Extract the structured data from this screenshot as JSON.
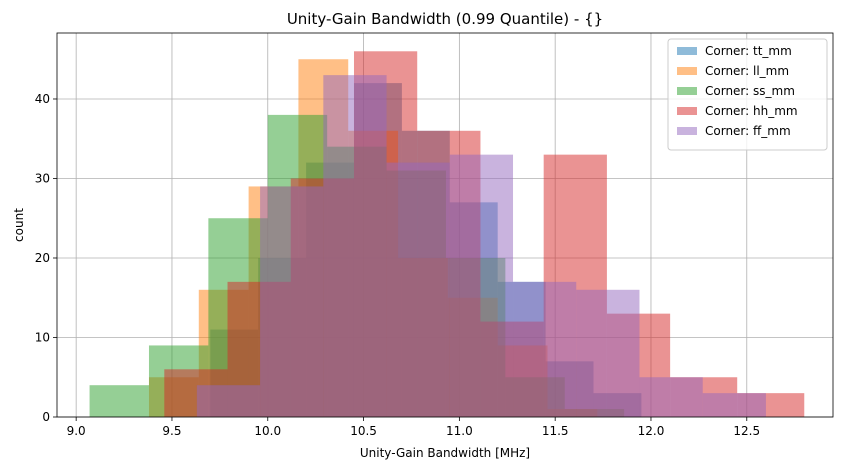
{
  "chart_data": {
    "type": "histogram",
    "title": "Unity-Gain Bandwidth (0.99 Quantile) - {}",
    "xlabel": "Unity-Gain Bandwidth [MHz]",
    "ylabel": "count",
    "xlim": [
      8.9,
      12.95
    ],
    "ylim": [
      0,
      48.3
    ],
    "xticks": [
      9.0,
      9.5,
      10.0,
      10.5,
      11.0,
      11.5,
      12.0,
      12.5
    ],
    "xtick_labels": [
      "9.0",
      "9.5",
      "10.0",
      "10.5",
      "11.0",
      "11.5",
      "12.0",
      "12.5"
    ],
    "yticks": [
      0,
      10,
      20,
      30,
      40
    ],
    "ytick_labels": [
      "0",
      "10",
      "20",
      "30",
      "40"
    ],
    "grid": true,
    "legend_position": "top-right",
    "series": [
      {
        "name": "Corner: tt_mm",
        "color": "#1f77b4",
        "bins": [
          9.7,
          9.95,
          10.2,
          10.45,
          10.7,
          10.95,
          11.2,
          11.45,
          11.7,
          11.95
        ],
        "counts": [
          11,
          20,
          32,
          42,
          36,
          27,
          17,
          7,
          3
        ]
      },
      {
        "name": "Corner: ll_mm",
        "color": "#ff7f0e",
        "bins": [
          9.38,
          9.64,
          9.9,
          10.16,
          10.42,
          10.68,
          10.94,
          11.2,
          11.46,
          11.72
        ],
        "counts": [
          5,
          16,
          29,
          45,
          36,
          20,
          15,
          9,
          1
        ]
      },
      {
        "name": "Corner: ss_mm",
        "color": "#2ca02c",
        "bins": [
          9.07,
          9.38,
          9.69,
          10.0,
          10.31,
          10.62,
          10.93,
          11.24,
          11.55,
          11.86
        ],
        "counts": [
          4,
          9,
          25,
          38,
          34,
          31,
          20,
          5,
          1
        ]
      },
      {
        "name": "Corner: hh_mm",
        "color": "#d62728",
        "bins": [
          9.46,
          9.79,
          10.12,
          10.45,
          10.78,
          11.11,
          11.44,
          11.77,
          12.1,
          12.45,
          12.8
        ],
        "counts": [
          6,
          17,
          30,
          46,
          36,
          12,
          33,
          13,
          5,
          3
        ]
      },
      {
        "name": "Corner: ff_mm",
        "color": "#9467bd",
        "bins": [
          9.63,
          9.96,
          10.29,
          10.62,
          10.95,
          11.28,
          11.61,
          11.94,
          12.27,
          12.6
        ],
        "counts": [
          4,
          29,
          43,
          32,
          33,
          17,
          16,
          5,
          3
        ]
      }
    ]
  }
}
